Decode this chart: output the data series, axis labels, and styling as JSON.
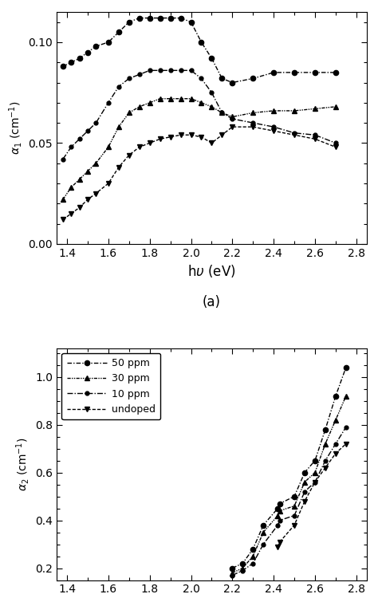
{
  "title_a": "(a)",
  "legend_labels": [
    "50 ppm",
    "30 ppm",
    "10 ppm",
    "undoped"
  ],
  "ylim_a": [
    0.0,
    0.115
  ],
  "ylim_b": [
    0.15,
    1.12
  ],
  "xlim": [
    1.35,
    2.85
  ],
  "series_50ppm_a_x": [
    1.38,
    1.42,
    1.46,
    1.5,
    1.54,
    1.6,
    1.65,
    1.7,
    1.75,
    1.8,
    1.85,
    1.9,
    1.95,
    2.0,
    2.05,
    2.1,
    2.15,
    2.2,
    2.3,
    2.4,
    2.5,
    2.6,
    2.7
  ],
  "series_50ppm_a_y": [
    0.088,
    0.09,
    0.092,
    0.095,
    0.098,
    0.1,
    0.105,
    0.11,
    0.112,
    0.112,
    0.112,
    0.112,
    0.112,
    0.11,
    0.1,
    0.092,
    0.082,
    0.08,
    0.082,
    0.085,
    0.085,
    0.085,
    0.085
  ],
  "series_30ppm_a_x": [
    1.38,
    1.42,
    1.46,
    1.5,
    1.54,
    1.6,
    1.65,
    1.7,
    1.75,
    1.8,
    1.85,
    1.9,
    1.95,
    2.0,
    2.05,
    2.1,
    2.15,
    2.2,
    2.3,
    2.4,
    2.5,
    2.6,
    2.7
  ],
  "series_30ppm_a_y": [
    0.022,
    0.028,
    0.032,
    0.036,
    0.04,
    0.048,
    0.058,
    0.065,
    0.068,
    0.07,
    0.072,
    0.072,
    0.072,
    0.072,
    0.07,
    0.068,
    0.065,
    0.063,
    0.065,
    0.066,
    0.066,
    0.067,
    0.068
  ],
  "series_10ppm_a_x": [
    1.38,
    1.42,
    1.46,
    1.5,
    1.54,
    1.6,
    1.65,
    1.7,
    1.75,
    1.8,
    1.85,
    1.9,
    1.95,
    2.0,
    2.05,
    2.1,
    2.15,
    2.2,
    2.3,
    2.4,
    2.5,
    2.6,
    2.7
  ],
  "series_10ppm_a_y": [
    0.042,
    0.048,
    0.052,
    0.056,
    0.06,
    0.07,
    0.078,
    0.082,
    0.084,
    0.086,
    0.086,
    0.086,
    0.086,
    0.086,
    0.082,
    0.075,
    0.065,
    0.062,
    0.06,
    0.058,
    0.055,
    0.054,
    0.05
  ],
  "series_undoped_a_x": [
    1.38,
    1.42,
    1.46,
    1.5,
    1.54,
    1.6,
    1.65,
    1.7,
    1.75,
    1.8,
    1.85,
    1.9,
    1.95,
    2.0,
    2.05,
    2.1,
    2.15,
    2.2,
    2.3,
    2.4,
    2.5,
    2.6,
    2.7
  ],
  "series_undoped_a_y": [
    0.012,
    0.015,
    0.018,
    0.022,
    0.025,
    0.03,
    0.038,
    0.044,
    0.048,
    0.05,
    0.052,
    0.053,
    0.054,
    0.054,
    0.053,
    0.05,
    0.054,
    0.058,
    0.058,
    0.056,
    0.054,
    0.052,
    0.048
  ],
  "series_50ppm_b_x": [
    2.2,
    2.25,
    2.3,
    2.35,
    2.42,
    2.43,
    2.5,
    2.55,
    2.6,
    2.65,
    2.7,
    2.75
  ],
  "series_50ppm_b_y": [
    0.2,
    0.22,
    0.28,
    0.38,
    0.45,
    0.47,
    0.5,
    0.6,
    0.65,
    0.78,
    0.92,
    1.04
  ],
  "series_30ppm_b_x": [
    2.2,
    2.25,
    2.3,
    2.35,
    2.42,
    2.43,
    2.5,
    2.55,
    2.6,
    2.65,
    2.7,
    2.75
  ],
  "series_30ppm_b_y": [
    0.18,
    0.2,
    0.25,
    0.35,
    0.42,
    0.44,
    0.46,
    0.56,
    0.6,
    0.72,
    0.82,
    0.92
  ],
  "series_10ppm_b_x": [
    2.2,
    2.25,
    2.3,
    2.35,
    2.42,
    2.43,
    2.5,
    2.55,
    2.6,
    2.65,
    2.7,
    2.75
  ],
  "series_10ppm_b_y": [
    0.17,
    0.19,
    0.22,
    0.3,
    0.38,
    0.4,
    0.42,
    0.52,
    0.56,
    0.65,
    0.72,
    0.79
  ],
  "series_undoped_b_x": [
    2.42,
    2.43,
    2.5,
    2.55,
    2.6,
    2.65,
    2.7,
    2.75
  ],
  "series_undoped_b_y": [
    0.29,
    0.31,
    0.38,
    0.48,
    0.56,
    0.62,
    0.68,
    0.72
  ],
  "bg_color": "#ffffff"
}
